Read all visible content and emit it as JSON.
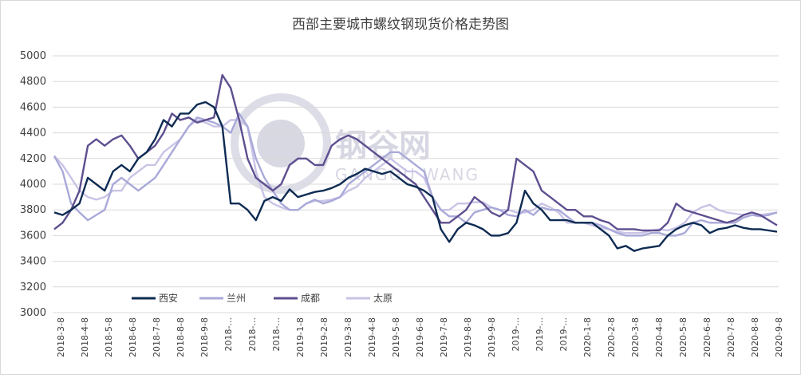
{
  "chart_data": {
    "type": "line",
    "title": "西部主要城市螺纹钢现货价格走势图",
    "xlabel": "",
    "ylabel": "",
    "ylim": [
      3000,
      5000
    ],
    "yticks": [
      "5000",
      "4800",
      "4600",
      "4400",
      "4200",
      "4000",
      "3800",
      "3600",
      "3400",
      "3200",
      "3000"
    ],
    "x_ticks": [
      "2018-3-8",
      "2018-4-8",
      "2018-5-8",
      "2018-6-8",
      "2018-7-8",
      "2018-8-8",
      "2018-9-8",
      "2018-...",
      "2018-...",
      "2018-...",
      "2019-1-8",
      "2019-2-8",
      "2019-3-8",
      "2019-4-8",
      "2019-5-8",
      "2019-6-8",
      "2019-7-8",
      "2019-8-8",
      "2019-9-8",
      "2019-...",
      "2019-...",
      "2019-...",
      "2020-1-8",
      "2020-2-8",
      "2020-3-8",
      "2020-4-8",
      "2020-5-8",
      "2020-6-8",
      "2020-7-8",
      "2020-8-8",
      "2020-9-8"
    ],
    "grid": true,
    "legend_position": "bottom-left",
    "watermark": "钢谷网",
    "watermark_sub": "GANGGU WANG",
    "series": [
      {
        "name": "西安",
        "color": "#0d2b52",
        "values": [
          3780,
          3760,
          3800,
          3850,
          4050,
          4000,
          3950,
          4100,
          4150,
          4100,
          4200,
          4250,
          4350,
          4500,
          4450,
          4550,
          4550,
          4620,
          4640,
          4600,
          4450,
          3850,
          3850,
          3800,
          3720,
          3870,
          3900,
          3870,
          3960,
          3900,
          3920,
          3940,
          3950,
          3970,
          4000,
          4050,
          4080,
          4120,
          4100,
          4080,
          4100,
          4050,
          4000,
          3980,
          3950,
          3900,
          3650,
          3550,
          3650,
          3700,
          3680,
          3650,
          3600,
          3600,
          3620,
          3700,
          3950,
          3850,
          3800,
          3720,
          3720,
          3720,
          3700,
          3700,
          3700,
          3650,
          3600,
          3500,
          3520,
          3480,
          3500,
          3510,
          3520,
          3600,
          3650,
          3680,
          3700,
          3680,
          3620,
          3650,
          3660,
          3680,
          3660,
          3650,
          3650,
          3640,
          3630
        ]
      },
      {
        "name": "兰州",
        "color": "#a9a9d9",
        "values": [
          4220,
          4100,
          3850,
          3780,
          3720,
          3760,
          3800,
          4000,
          4050,
          4000,
          3950,
          4000,
          4050,
          4150,
          4250,
          4350,
          4450,
          4520,
          4500,
          4480,
          4450,
          4400,
          4550,
          4450,
          4200,
          4050,
          3950,
          3850,
          3800,
          3800,
          3850,
          3880,
          3850,
          3870,
          3900,
          4000,
          4050,
          4100,
          4150,
          4200,
          4250,
          4250,
          4200,
          4150,
          4100,
          3900,
          3800,
          3750,
          3750,
          3700,
          3780,
          3800,
          3820,
          3800,
          3760,
          3750,
          3800,
          3760,
          3820,
          3800,
          3800,
          3750,
          3700,
          3700,
          3700,
          3680,
          3650,
          3620,
          3600,
          3600,
          3600,
          3620,
          3620,
          3600,
          3600,
          3620,
          3700,
          3720,
          3700,
          3700,
          3700,
          3700,
          3740,
          3760,
          3750,
          3760,
          3780
        ]
      },
      {
        "name": "成都",
        "color": "#5e4f8f",
        "values": [
          3650,
          3700,
          3800,
          3950,
          4300,
          4350,
          4300,
          4350,
          4380,
          4300,
          4200,
          4250,
          4300,
          4400,
          4550,
          4500,
          4520,
          4480,
          4500,
          4520,
          4850,
          4750,
          4500,
          4200,
          4050,
          4000,
          3950,
          4000,
          4150,
          4200,
          4200,
          4150,
          4150,
          4300,
          4350,
          4380,
          4350,
          4300,
          4250,
          4200,
          4150,
          4100,
          4050,
          4000,
          3900,
          3800,
          3700,
          3700,
          3750,
          3800,
          3900,
          3850,
          3780,
          3750,
          3800,
          4200,
          4150,
          4100,
          3950,
          3900,
          3850,
          3800,
          3800,
          3750,
          3750,
          3720,
          3700,
          3650,
          3650,
          3650,
          3640,
          3640,
          3640,
          3700,
          3850,
          3800,
          3780,
          3760,
          3740,
          3720,
          3700,
          3720,
          3760,
          3780,
          3760,
          3720,
          3680
        ]
      },
      {
        "name": "太原",
        "color": "#c9c3e6",
        "values": [
          4220,
          4150,
          4050,
          3950,
          3900,
          3880,
          3900,
          3950,
          3950,
          4050,
          4100,
          4150,
          4150,
          4250,
          4300,
          4350,
          4450,
          4500,
          4480,
          4450,
          4450,
          4500,
          4500,
          4450,
          4100,
          3900,
          3850,
          3820,
          3800,
          3800,
          3850,
          3870,
          3870,
          3880,
          3900,
          3950,
          3980,
          4050,
          4100,
          4150,
          4200,
          4150,
          4100,
          4100,
          4050,
          3900,
          3800,
          3800,
          3850,
          3850,
          3860,
          3860,
          3820,
          3800,
          3800,
          3780,
          3780,
          3800,
          3850,
          3820,
          3780,
          3700,
          3700,
          3700,
          3680,
          3660,
          3650,
          3630,
          3620,
          3620,
          3620,
          3640,
          3650,
          3640,
          3660,
          3700,
          3780,
          3820,
          3840,
          3800,
          3780,
          3770,
          3760,
          3780,
          3760,
          3770,
          3780
        ]
      }
    ]
  }
}
